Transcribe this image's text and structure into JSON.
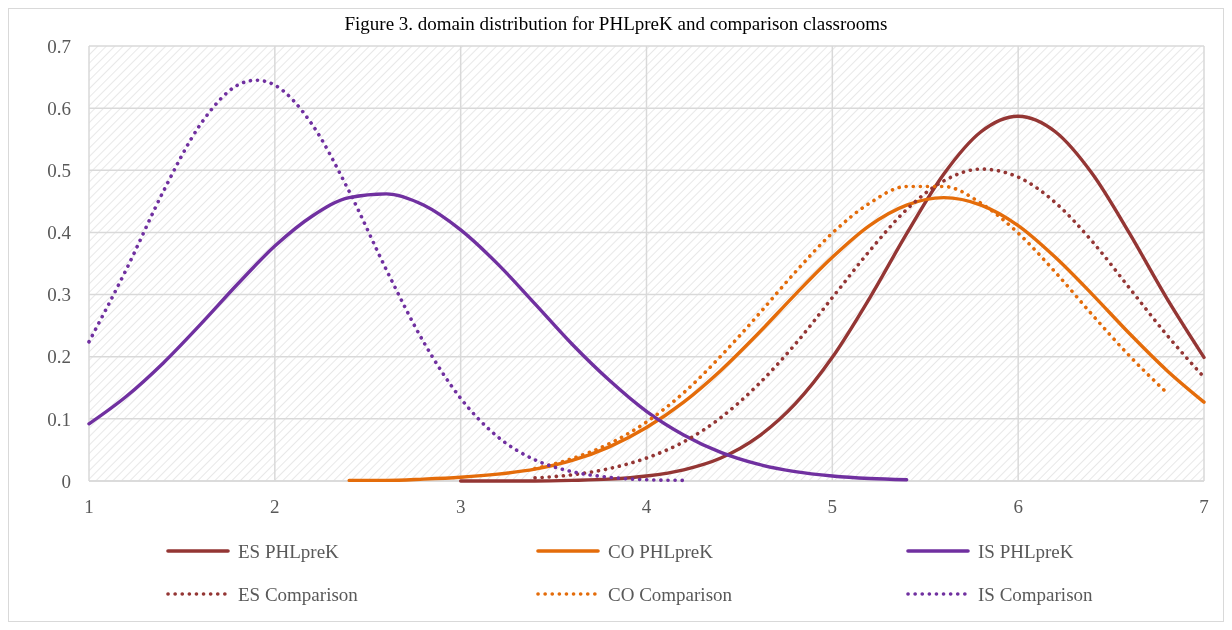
{
  "chart_data": {
    "type": "line",
    "title": "Figure 3. domain distribution for PHLpreK and comparison classrooms",
    "xlim": [
      1,
      7
    ],
    "xticks": [
      1,
      2,
      3,
      4,
      5,
      6,
      7
    ],
    "ylim": [
      0,
      0.7
    ],
    "yticks": [
      0,
      0.1,
      0.2,
      0.3,
      0.4,
      0.5,
      0.6,
      0.7
    ],
    "grid": true,
    "legend": "bottom",
    "marker": "none",
    "series": [
      {
        "name": "ES PHLpreK",
        "color": "#943634",
        "line_style": "solid",
        "x": [
          3,
          3.2,
          3.4,
          3.6,
          3.8,
          4,
          4.2,
          4.4,
          4.6,
          4.8,
          5,
          5.2,
          5.4,
          5.6,
          5.8,
          6,
          6.2,
          6.4,
          6.6,
          6.8,
          7
        ],
        "values": [
          0,
          0,
          0,
          0.001,
          0.003,
          0.008,
          0.018,
          0.037,
          0.071,
          0.124,
          0.199,
          0.294,
          0.398,
          0.494,
          0.562,
          0.587,
          0.562,
          0.494,
          0.398,
          0.294,
          0.199
        ]
      },
      {
        "name": "CO PHLpreK",
        "color": "#e46c0a",
        "line_style": "solid",
        "x": [
          2.4,
          2.6,
          2.8,
          3,
          3.2,
          3.4,
          3.6,
          3.8,
          4,
          4.2,
          4.4,
          4.6,
          4.8,
          5,
          5.2,
          5.4,
          5.6,
          5.8,
          6,
          6.2,
          6.4,
          6.6,
          6.8,
          7
        ],
        "values": [
          0.001,
          0.001,
          0.003,
          0.006,
          0.011,
          0.019,
          0.033,
          0.055,
          0.086,
          0.127,
          0.178,
          0.237,
          0.3,
          0.36,
          0.411,
          0.444,
          0.456,
          0.444,
          0.411,
          0.36,
          0.3,
          0.237,
          0.178,
          0.127
        ]
      },
      {
        "name": "IS PHLpreK",
        "color": "#7030a0",
        "line_style": "solid",
        "x": [
          1,
          1.2,
          1.4,
          1.6,
          1.8,
          2,
          2.2,
          2.4,
          2.6,
          2.8,
          3,
          3.2,
          3.4,
          3.6,
          3.8,
          4,
          4.2,
          4.4,
          4.6,
          4.8,
          5,
          5.2,
          5.4
        ],
        "values": [
          0.092,
          0.136,
          0.19,
          0.252,
          0.317,
          0.378,
          0.426,
          0.456,
          0.462,
          0.444,
          0.404,
          0.349,
          0.285,
          0.22,
          0.162,
          0.112,
          0.074,
          0.046,
          0.027,
          0.015,
          0.008,
          0.004,
          0.002
        ]
      },
      {
        "name": "ES Comparison",
        "color": "#943634",
        "line_style": "dotted",
        "x": [
          3.4,
          3.6,
          3.8,
          4,
          4.2,
          4.4,
          4.6,
          4.8,
          5,
          5.2,
          5.4,
          5.6,
          5.8,
          6,
          6.2,
          6.4,
          6.6,
          6.8,
          7
        ],
        "values": [
          0.005,
          0.01,
          0.02,
          0.037,
          0.063,
          0.102,
          0.155,
          0.22,
          0.295,
          0.37,
          0.437,
          0.483,
          0.502,
          0.489,
          0.448,
          0.385,
          0.31,
          0.235,
          0.167
        ]
      },
      {
        "name": "CO Comparison",
        "color": "#e46c0a",
        "line_style": "dotted",
        "x": [
          3.4,
          3.6,
          3.8,
          4,
          4.2,
          4.4,
          4.6,
          4.8,
          5,
          5.2,
          5.4,
          5.6,
          5.8,
          6,
          6.2,
          6.4,
          6.6,
          6.8
        ],
        "values": [
          0.02,
          0.036,
          0.06,
          0.095,
          0.142,
          0.201,
          0.267,
          0.336,
          0.399,
          0.447,
          0.474,
          0.474,
          0.447,
          0.399,
          0.336,
          0.267,
          0.201,
          0.142
        ]
      },
      {
        "name": "IS Comparison",
        "color": "#7030a0",
        "line_style": "dotted",
        "x": [
          1,
          1.2,
          1.4,
          1.6,
          1.8,
          1.9,
          2,
          2.2,
          2.4,
          2.6,
          2.8,
          3,
          3.2,
          3.4,
          3.6,
          3.8,
          4,
          4.2
        ],
        "values": [
          0.224,
          0.34,
          0.466,
          0.574,
          0.637,
          0.645,
          0.637,
          0.574,
          0.466,
          0.34,
          0.224,
          0.133,
          0.071,
          0.034,
          0.015,
          0.006,
          0.002,
          0.001
        ]
      }
    ]
  }
}
